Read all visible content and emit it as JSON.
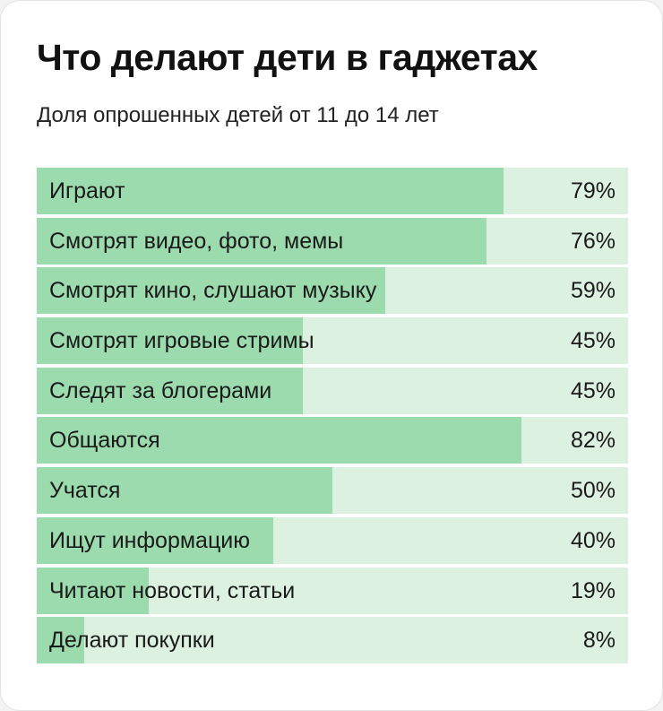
{
  "chart_data": {
    "type": "bar",
    "title": "Что делают дети в гаджетах",
    "subtitle": "Доля опрошенных детей от 11 до 14 лет",
    "categories": [
      "Играют",
      "Смотрят видео, фото, мемы",
      "Смотрят кино, слушают музыку",
      "Смотрят игровые стримы",
      "Следят за блогерами",
      "Общаются",
      "Учатся",
      "Ищут информацию",
      "Читают новости, статьи",
      "Делают покупки"
    ],
    "values": [
      79,
      76,
      59,
      45,
      45,
      82,
      50,
      40,
      19,
      8
    ],
    "value_labels": [
      "79%",
      "76%",
      "59%",
      "45%",
      "45%",
      "82%",
      "50%",
      "40%",
      "19%",
      "8%"
    ],
    "xlim": [
      0,
      100
    ],
    "orientation": "horizontal",
    "grid": false,
    "legend": "none",
    "colors": {
      "bar": "#9cdbae",
      "track": "#ddf1e1"
    }
  }
}
